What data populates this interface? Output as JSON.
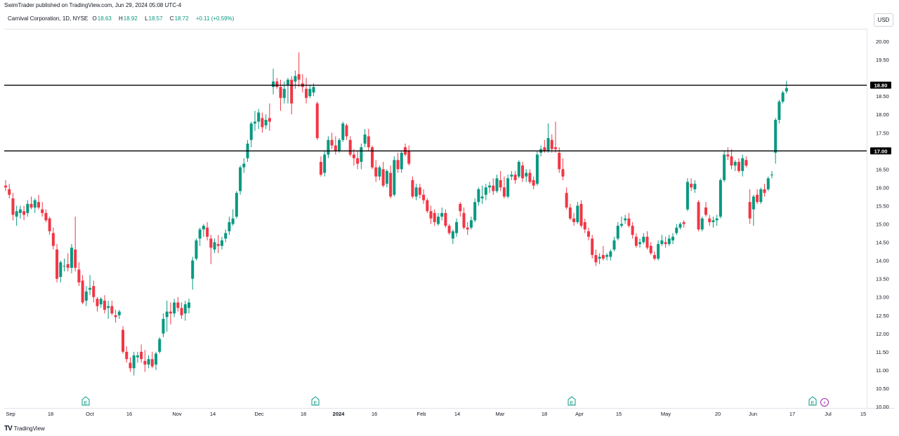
{
  "header": {
    "published": "SwimTrader published on TradingView.com, Jun 29, 2024 05:08 UTC-4"
  },
  "legend": {
    "symbol": "Carnival Corporation, 1D, NYSE",
    "open_label": "O",
    "open": "18.63",
    "high_label": "H",
    "high": "18.92",
    "low_label": "L",
    "low": "18.57",
    "close_label": "C",
    "close": "18.72",
    "change": "+0.11 (+0.59%)"
  },
  "currency_button": "USD",
  "footer": {
    "brand": "TradingView"
  },
  "colors": {
    "up": "#089981",
    "down": "#f23645",
    "line": "#000000",
    "event": "#089981",
    "dividend": "#9c27b0"
  },
  "chart_data": {
    "type": "candlestick",
    "y_axis": {
      "min": 10.0,
      "max": 20.0,
      "tick_labels": [
        "10.00",
        "10.50",
        "11.00",
        "11.50",
        "12.00",
        "12.50",
        "13.00",
        "13.50",
        "14.00",
        "14.50",
        "15.00",
        "15.50",
        "16.00",
        "16.50",
        "17.00",
        "17.50",
        "18.00",
        "18.50",
        "19.00",
        "19.50",
        "20.00"
      ],
      "position": "right"
    },
    "x_axis": {
      "tick_labels": [
        "Sep",
        "18",
        "Oct",
        "16",
        "Nov",
        "14",
        "Dec",
        "18",
        "2024",
        "16",
        "Feb",
        "14",
        "Mar",
        "18",
        "Apr",
        "15",
        "May",
        "20",
        "Jun",
        "17",
        "Jul",
        "15"
      ]
    },
    "horizontal_lines": [
      {
        "value": 18.8,
        "label": "18.80"
      },
      {
        "value": 17.0,
        "label": "17.00"
      }
    ],
    "event_markers": [
      {
        "type": "earnings",
        "symbol": "E"
      },
      {
        "type": "earnings",
        "symbol": "E"
      },
      {
        "type": "earnings",
        "symbol": "E"
      },
      {
        "type": "earnings",
        "symbol": "E"
      },
      {
        "type": "dividend",
        "symbol": "⚡"
      }
    ],
    "candles": [
      [
        16.05,
        16.2,
        15.9,
        16.0
      ],
      [
        15.95,
        16.1,
        15.7,
        15.8
      ],
      [
        15.7,
        15.85,
        15.1,
        15.25
      ],
      [
        15.2,
        15.5,
        14.95,
        15.35
      ],
      [
        15.3,
        15.5,
        15.15,
        15.4
      ],
      [
        15.35,
        15.5,
        15.1,
        15.25
      ],
      [
        15.3,
        15.65,
        15.2,
        15.55
      ],
      [
        15.55,
        15.75,
        15.4,
        15.45
      ],
      [
        15.45,
        15.7,
        15.3,
        15.65
      ],
      [
        15.6,
        15.8,
        15.4,
        15.45
      ],
      [
        15.4,
        15.6,
        15.2,
        15.3
      ],
      [
        15.3,
        15.4,
        15.05,
        15.1
      ],
      [
        15.15,
        15.2,
        14.7,
        14.8
      ],
      [
        14.75,
        14.9,
        14.3,
        14.4
      ],
      [
        14.3,
        14.45,
        13.4,
        13.5
      ],
      [
        13.55,
        14.0,
        13.4,
        13.95
      ],
      [
        13.85,
        14.05,
        13.7,
        13.85
      ],
      [
        13.9,
        14.2,
        13.7,
        13.8
      ],
      [
        13.8,
        14.45,
        13.65,
        14.35
      ],
      [
        14.3,
        15.2,
        13.7,
        13.8
      ],
      [
        13.75,
        13.95,
        13.3,
        13.4
      ],
      [
        13.45,
        13.6,
        12.8,
        12.85
      ],
      [
        12.9,
        13.3,
        12.75,
        13.15
      ],
      [
        13.2,
        13.6,
        13.05,
        13.25
      ],
      [
        13.3,
        13.45,
        12.85,
        13.0
      ],
      [
        12.95,
        13.0,
        12.6,
        12.75
      ],
      [
        12.8,
        13.0,
        12.7,
        12.95
      ],
      [
        12.9,
        13.05,
        12.55,
        12.65
      ],
      [
        12.7,
        12.9,
        12.4,
        12.75
      ],
      [
        12.75,
        12.9,
        12.5,
        12.55
      ],
      [
        12.5,
        12.65,
        12.3,
        12.45
      ],
      [
        12.5,
        12.65,
        12.4,
        12.6
      ],
      [
        12.1,
        12.2,
        11.45,
        11.5
      ],
      [
        11.5,
        11.65,
        11.2,
        11.3
      ],
      [
        11.2,
        11.35,
        10.95,
        11.05
      ],
      [
        11.05,
        11.5,
        10.85,
        11.4
      ],
      [
        11.35,
        11.5,
        11.2,
        11.4
      ],
      [
        11.5,
        11.7,
        11.2,
        11.3
      ],
      [
        11.25,
        11.55,
        10.95,
        11.15
      ],
      [
        11.15,
        11.4,
        11.05,
        11.3
      ],
      [
        11.3,
        11.5,
        11.05,
        11.1
      ],
      [
        11.15,
        11.5,
        11.0,
        11.45
      ],
      [
        11.5,
        11.9,
        11.45,
        11.85
      ],
      [
        12.0,
        12.55,
        11.9,
        12.4
      ],
      [
        12.45,
        12.9,
        12.05,
        12.6
      ],
      [
        12.6,
        12.85,
        12.25,
        12.55
      ],
      [
        12.55,
        12.95,
        12.45,
        12.85
      ],
      [
        12.85,
        13.0,
        12.6,
        12.7
      ],
      [
        12.7,
        12.85,
        12.4,
        12.5
      ],
      [
        12.55,
        12.9,
        12.35,
        12.8
      ],
      [
        12.7,
        12.95,
        12.55,
        12.85
      ],
      [
        13.5,
        14.1,
        13.2,
        14.0
      ],
      [
        14.05,
        14.6,
        14.0,
        14.55
      ],
      [
        14.6,
        14.9,
        14.4,
        14.85
      ],
      [
        14.85,
        15.0,
        14.65,
        14.95
      ],
      [
        14.9,
        15.05,
        14.55,
        14.65
      ],
      [
        14.6,
        14.7,
        13.9,
        14.35
      ],
      [
        14.3,
        14.6,
        14.2,
        14.5
      ],
      [
        14.45,
        14.7,
        14.2,
        14.4
      ],
      [
        14.4,
        14.65,
        14.3,
        14.55
      ],
      [
        14.6,
        14.85,
        14.5,
        14.75
      ],
      [
        14.8,
        15.2,
        14.7,
        15.05
      ],
      [
        15.0,
        15.4,
        14.95,
        15.15
      ],
      [
        15.2,
        15.9,
        15.15,
        15.85
      ],
      [
        15.9,
        16.6,
        15.8,
        16.55
      ],
      [
        16.55,
        16.8,
        16.4,
        16.65
      ],
      [
        16.8,
        17.3,
        16.7,
        17.2
      ],
      [
        17.3,
        17.8,
        17.1,
        17.75
      ],
      [
        17.75,
        18.1,
        17.55,
        17.8
      ],
      [
        17.8,
        18.15,
        17.6,
        18.05
      ],
      [
        17.9,
        18.05,
        17.5,
        17.65
      ],
      [
        17.7,
        18.0,
        17.6,
        17.85
      ],
      [
        17.9,
        18.3,
        17.55,
        17.8
      ],
      [
        18.75,
        19.25,
        18.55,
        18.9
      ],
      [
        18.9,
        19.0,
        18.7,
        18.75
      ],
      [
        18.75,
        18.95,
        18.1,
        18.45
      ],
      [
        18.45,
        18.9,
        18.3,
        18.7
      ],
      [
        18.8,
        19.0,
        18.3,
        18.95
      ],
      [
        18.95,
        19.05,
        18.0,
        18.3
      ],
      [
        18.9,
        19.2,
        18.7,
        19.05
      ],
      [
        19.1,
        19.7,
        18.75,
        18.95
      ],
      [
        18.85,
        19.1,
        18.6,
        18.75
      ],
      [
        18.7,
        19.0,
        18.3,
        18.45
      ],
      [
        18.5,
        18.8,
        18.45,
        18.7
      ],
      [
        18.6,
        18.85,
        18.5,
        18.75
      ],
      [
        18.3,
        18.35,
        17.3,
        17.35
      ],
      [
        16.7,
        16.85,
        16.3,
        16.35
      ],
      [
        16.4,
        17.0,
        16.3,
        16.9
      ],
      [
        16.9,
        17.4,
        16.8,
        17.3
      ],
      [
        17.3,
        17.5,
        17.05,
        17.15
      ],
      [
        17.15,
        17.4,
        16.9,
        17.0
      ],
      [
        17.0,
        17.35,
        16.95,
        17.3
      ],
      [
        17.3,
        17.8,
        17.25,
        17.75
      ],
      [
        17.7,
        17.75,
        17.3,
        17.4
      ],
      [
        17.3,
        17.4,
        16.85,
        16.9
      ],
      [
        16.9,
        17.05,
        16.6,
        16.8
      ],
      [
        16.8,
        17.0,
        16.5,
        16.65
      ],
      [
        16.7,
        17.2,
        16.5,
        17.1
      ],
      [
        17.2,
        17.6,
        17.1,
        17.45
      ],
      [
        17.4,
        17.6,
        17.0,
        17.1
      ],
      [
        17.1,
        17.15,
        16.5,
        16.55
      ],
      [
        16.55,
        16.75,
        16.15,
        16.3
      ],
      [
        16.3,
        16.6,
        16.2,
        16.55
      ],
      [
        16.5,
        16.7,
        16.0,
        16.05
      ],
      [
        16.1,
        16.5,
        16.0,
        16.45
      ],
      [
        16.4,
        16.6,
        15.7,
        15.75
      ],
      [
        15.8,
        16.85,
        15.75,
        16.75
      ],
      [
        16.75,
        16.95,
        16.4,
        16.5
      ],
      [
        16.5,
        17.0,
        16.4,
        16.95
      ],
      [
        17.1,
        17.2,
        16.85,
        16.9
      ],
      [
        17.0,
        17.15,
        16.6,
        16.65
      ],
      [
        16.2,
        16.3,
        15.7,
        15.75
      ],
      [
        15.75,
        16.1,
        15.65,
        16.0
      ],
      [
        16.0,
        16.1,
        15.7,
        15.8
      ],
      [
        15.8,
        15.95,
        15.55,
        15.65
      ],
      [
        15.65,
        15.7,
        15.3,
        15.35
      ],
      [
        15.35,
        15.5,
        15.0,
        15.15
      ],
      [
        15.3,
        15.4,
        14.95,
        15.05
      ],
      [
        15.0,
        15.3,
        14.95,
        15.2
      ],
      [
        15.2,
        15.45,
        15.1,
        15.3
      ],
      [
        15.3,
        15.4,
        14.9,
        14.95
      ],
      [
        14.95,
        15.0,
        14.7,
        14.75
      ],
      [
        14.6,
        14.85,
        14.45,
        14.8
      ],
      [
        14.75,
        15.15,
        14.65,
        15.05
      ],
      [
        15.55,
        15.6,
        15.2,
        15.35
      ],
      [
        15.3,
        15.45,
        14.85,
        14.9
      ],
      [
        14.9,
        15.05,
        14.7,
        14.85
      ],
      [
        14.9,
        15.2,
        14.85,
        15.1
      ],
      [
        15.1,
        15.7,
        15.05,
        15.6
      ],
      [
        15.6,
        16.0,
        15.5,
        15.95
      ],
      [
        15.7,
        16.05,
        15.55,
        15.75
      ],
      [
        15.8,
        16.1,
        15.65,
        16.0
      ],
      [
        16.0,
        16.15,
        15.85,
        16.05
      ],
      [
        16.05,
        16.25,
        15.8,
        15.9
      ],
      [
        15.9,
        16.35,
        15.85,
        16.25
      ],
      [
        16.2,
        16.45,
        15.9,
        16.0
      ],
      [
        16.0,
        16.3,
        15.7,
        15.75
      ],
      [
        15.75,
        16.35,
        15.7,
        16.25
      ],
      [
        16.3,
        16.45,
        16.2,
        16.35
      ],
      [
        16.35,
        16.45,
        16.1,
        16.2
      ],
      [
        16.3,
        16.75,
        16.25,
        16.7
      ],
      [
        16.6,
        16.7,
        16.15,
        16.25
      ],
      [
        16.3,
        16.5,
        16.15,
        16.4
      ],
      [
        16.4,
        16.5,
        16.1,
        16.15
      ],
      [
        16.2,
        16.3,
        15.95,
        16.05
      ],
      [
        16.1,
        17.0,
        16.05,
        16.9
      ],
      [
        16.95,
        17.15,
        16.85,
        17.05
      ],
      [
        17.1,
        17.3,
        16.95,
        17.0
      ],
      [
        17.0,
        17.75,
        16.95,
        17.35
      ],
      [
        17.3,
        17.45,
        16.95,
        17.05
      ],
      [
        17.1,
        17.8,
        16.95,
        17.05
      ],
      [
        16.95,
        17.1,
        16.4,
        16.5
      ],
      [
        16.5,
        16.8,
        16.2,
        16.3
      ],
      [
        15.85,
        16.0,
        15.4,
        15.45
      ],
      [
        15.45,
        15.55,
        15.1,
        15.15
      ],
      [
        15.15,
        15.3,
        14.95,
        15.05
      ],
      [
        15.05,
        15.6,
        15.0,
        15.5
      ],
      [
        15.55,
        15.65,
        14.9,
        14.95
      ],
      [
        15.05,
        15.15,
        14.75,
        14.85
      ],
      [
        14.8,
        14.9,
        14.55,
        14.65
      ],
      [
        14.6,
        14.7,
        14.05,
        14.15
      ],
      [
        14.15,
        14.3,
        13.85,
        13.95
      ],
      [
        14.05,
        14.2,
        13.9,
        14.1
      ],
      [
        14.15,
        14.4,
        14.0,
        14.05
      ],
      [
        14.1,
        14.2,
        14.0,
        14.15
      ],
      [
        14.1,
        14.3,
        14.0,
        14.25
      ],
      [
        14.3,
        14.65,
        14.25,
        14.55
      ],
      [
        14.6,
        15.05,
        14.55,
        14.95
      ],
      [
        14.95,
        15.2,
        14.9,
        15.0
      ],
      [
        15.1,
        15.25,
        15.0,
        15.15
      ],
      [
        15.15,
        15.3,
        14.9,
        14.95
      ],
      [
        14.95,
        15.05,
        14.6,
        14.7
      ],
      [
        14.65,
        14.75,
        14.35,
        14.4
      ],
      [
        14.45,
        14.6,
        14.35,
        14.5
      ],
      [
        14.5,
        14.75,
        14.45,
        14.65
      ],
      [
        14.65,
        14.8,
        14.3,
        14.35
      ],
      [
        14.4,
        14.5,
        14.15,
        14.2
      ],
      [
        14.15,
        14.25,
        14.0,
        14.05
      ],
      [
        14.05,
        14.55,
        14.0,
        14.45
      ],
      [
        14.45,
        14.7,
        14.4,
        14.55
      ],
      [
        14.5,
        14.65,
        14.35,
        14.45
      ],
      [
        14.45,
        14.7,
        14.4,
        14.6
      ],
      [
        14.55,
        14.75,
        14.45,
        14.65
      ],
      [
        14.75,
        15.0,
        14.7,
        14.9
      ],
      [
        14.9,
        15.05,
        14.85,
        15.0
      ],
      [
        15.05,
        15.1,
        14.9,
        15.0
      ],
      [
        15.4,
        16.25,
        15.35,
        16.15
      ],
      [
        16.1,
        16.25,
        15.9,
        16.0
      ],
      [
        15.95,
        16.2,
        15.85,
        16.1
      ],
      [
        15.6,
        15.65,
        14.8,
        14.85
      ],
      [
        14.85,
        15.2,
        14.8,
        15.15
      ],
      [
        15.45,
        15.6,
        15.2,
        15.25
      ],
      [
        15.15,
        15.25,
        14.95,
        15.05
      ],
      [
        15.05,
        15.2,
        14.9,
        15.1
      ],
      [
        15.1,
        15.25,
        14.95,
        15.15
      ],
      [
        15.2,
        16.25,
        15.15,
        16.2
      ],
      [
        16.2,
        17.0,
        16.15,
        16.9
      ],
      [
        16.9,
        17.1,
        16.75,
        16.85
      ],
      [
        16.85,
        17.05,
        16.5,
        16.6
      ],
      [
        16.6,
        16.75,
        16.45,
        16.7
      ],
      [
        16.7,
        16.8,
        16.4,
        16.45
      ],
      [
        16.45,
        16.9,
        16.3,
        16.8
      ],
      [
        16.75,
        16.85,
        16.55,
        16.6
      ],
      [
        15.6,
        15.95,
        15.0,
        15.15
      ],
      [
        15.4,
        15.8,
        14.95,
        15.75
      ],
      [
        15.8,
        15.95,
        15.55,
        15.6
      ],
      [
        15.6,
        16.0,
        15.55,
        15.95
      ],
      [
        15.95,
        16.1,
        15.75,
        15.85
      ],
      [
        15.95,
        16.3,
        15.9,
        16.25
      ],
      [
        16.35,
        16.45,
        16.25,
        16.35
      ],
      [
        16.95,
        17.9,
        16.65,
        17.85
      ],
      [
        17.85,
        18.4,
        17.75,
        18.35
      ],
      [
        18.35,
        18.65,
        18.3,
        18.6
      ],
      [
        18.63,
        18.92,
        18.57,
        18.72
      ]
    ]
  }
}
